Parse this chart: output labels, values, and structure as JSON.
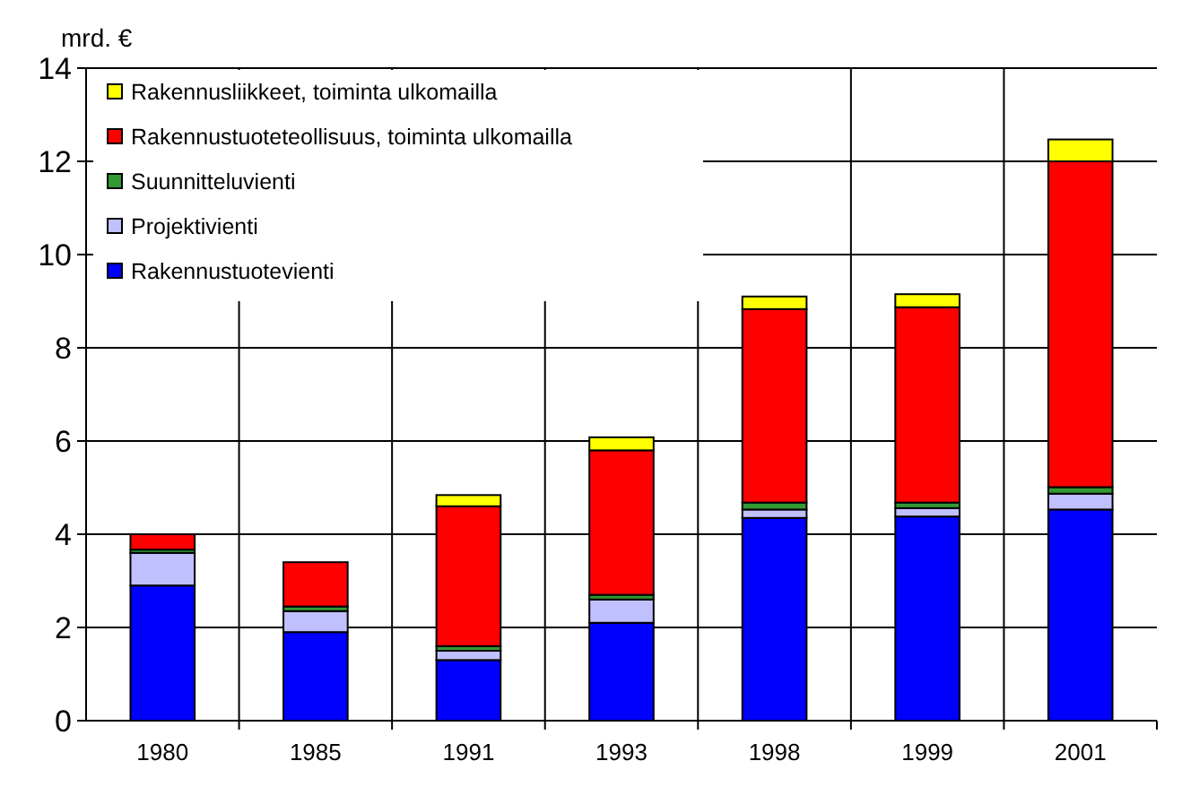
{
  "chart_data": {
    "type": "bar",
    "stacked": true,
    "ylabel": "mrd. €",
    "categories": [
      "1980",
      "1985",
      "1991",
      "1993",
      "1998",
      "1999",
      "2001"
    ],
    "series": [
      {
        "name": "Rakennustuotevienti",
        "color": "#0000ff",
        "values": [
          2.9,
          1.9,
          1.3,
          2.1,
          4.35,
          4.38,
          4.53
        ]
      },
      {
        "name": "Projektivienti",
        "color": "#c0c0ff",
        "values": [
          0.7,
          0.45,
          0.2,
          0.5,
          0.18,
          0.18,
          0.34
        ]
      },
      {
        "name": "Suunnitteluvienti",
        "color": "#339933",
        "values": [
          0.07,
          0.1,
          0.1,
          0.1,
          0.15,
          0.12,
          0.14
        ]
      },
      {
        "name": "Rakennustuoteteollisuus, toiminta ulkomailla",
        "color": "#ff0000",
        "values": [
          0.33,
          0.95,
          3.0,
          3.1,
          4.15,
          4.19,
          6.99
        ]
      },
      {
        "name": "Rakennusliikkeet, toiminta ulkomailla",
        "color": "#ffff00",
        "values": [
          0,
          0,
          0.24,
          0.28,
          0.27,
          0.28,
          0.47
        ]
      }
    ],
    "ylim": [
      0,
      14
    ],
    "yticks": [
      0,
      2,
      4,
      6,
      8,
      10,
      12,
      14
    ],
    "grid": true,
    "legend": "top left"
  }
}
